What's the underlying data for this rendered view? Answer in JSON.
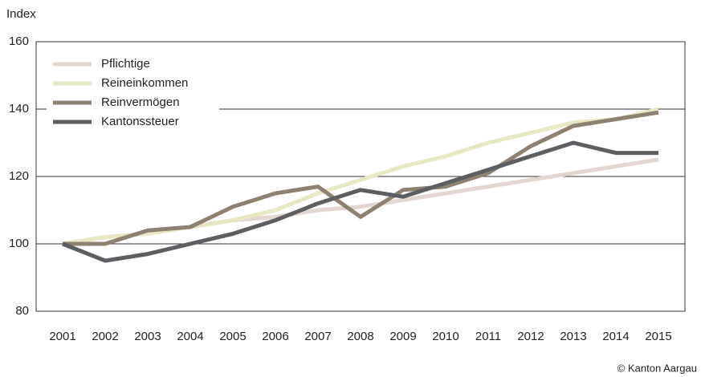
{
  "chart_data": {
    "type": "line",
    "y_label": "Index",
    "source": "© Kanton Aargau",
    "x": [
      "2001",
      "2002",
      "2003",
      "2004",
      "2005",
      "2006",
      "2007",
      "2008",
      "2009",
      "2010",
      "2011",
      "2012",
      "2013",
      "2014",
      "2015"
    ],
    "series": [
      {
        "name": "Pflichtige",
        "color": "#e3d6d0",
        "values": [
          100,
          102,
          103,
          105,
          107,
          108,
          110,
          111,
          113,
          115,
          117,
          119,
          121,
          123,
          125
        ]
      },
      {
        "name": "Reineinkommen",
        "color": "#e8e7c4",
        "values": [
          100,
          102,
          103,
          105,
          107,
          110,
          115,
          119,
          123,
          126,
          130,
          133,
          136,
          137,
          140
        ]
      },
      {
        "name": "Reinvermögen",
        "color": "#8e8172",
        "values": [
          100,
          100,
          104,
          105,
          111,
          115,
          117,
          108,
          116,
          117,
          121,
          129,
          135,
          137,
          139
        ]
      },
      {
        "name": "Kantonssteuer",
        "color": "#5c5e62",
        "values": [
          100,
          95,
          97,
          100,
          103,
          107,
          112,
          116,
          114,
          118,
          122,
          126,
          130,
          127,
          127
        ]
      }
    ],
    "ylim": [
      80,
      160
    ],
    "yticks": [
      80,
      100,
      120,
      140,
      160
    ],
    "grid": true,
    "legend": "upper left"
  }
}
